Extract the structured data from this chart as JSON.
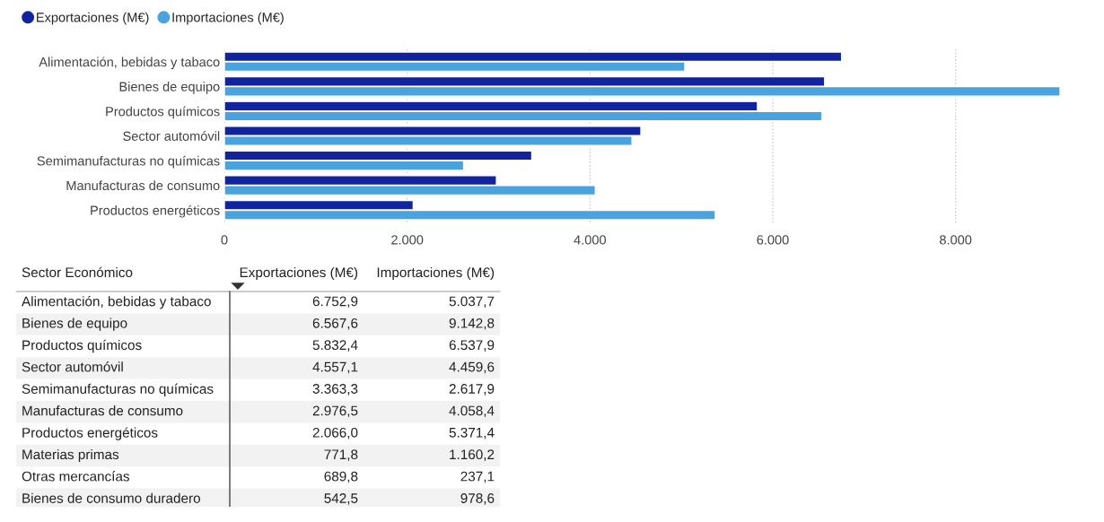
{
  "chart_data": [
    {
      "type": "bar",
      "orientation": "horizontal",
      "categories": [
        "Alimentación, bebidas y tabaco",
        "Bienes de equipo",
        "Productos químicos",
        "Sector automóvil",
        "Semimanufacturas no químicas",
        "Manufacturas de consumo",
        "Productos energéticos"
      ],
      "series": [
        {
          "name": "Exportaciones (M€)",
          "color": "#12239e",
          "values": [
            6752.9,
            6567.6,
            5832.4,
            4557.1,
            3363.3,
            2976.5,
            2066.0
          ]
        },
        {
          "name": "Importaciones (M€)",
          "color": "#4aa3df",
          "values": [
            5037.7,
            9142.8,
            6537.9,
            4459.6,
            2617.9,
            4058.4,
            5371.4
          ]
        }
      ],
      "xlim": [
        0,
        9142.8
      ],
      "xticks": [
        0,
        {
          "value": 2000,
          "label": "2.000"
        },
        {
          "value": 4000,
          "label": "4.000"
        },
        {
          "value": 6000,
          "label": "6.000"
        },
        {
          "value": 8000,
          "label": "8.000"
        }
      ],
      "grid": "x",
      "legend": "top left",
      "marker": "circle"
    },
    {
      "type": "other",
      "title": "Sector Económico",
      "data_labels": true,
      "categories": [
        "Alimentación, bebidas y tabaco",
        "Bienes de equipo",
        "Productos químicos",
        "Sector automóvil",
        "Semimanufacturas no químicas",
        "Manufacturas de consumo",
        "Productos energéticos",
        "Materias primas",
        "Otras mercancías",
        "Bienes de consumo duradero"
      ],
      "series": [
        {
          "name": "Exportaciones (M€)",
          "values": [
            6752.9,
            6567.6,
            5832.4,
            4557.1,
            3363.3,
            2976.5,
            2066.0,
            771.8,
            689.8,
            542.5
          ],
          "value_labels": [
            "6.752,9",
            "6.567,6",
            "5.832,4",
            "4.557,1",
            "3.363,3",
            "2.976,5",
            "2.066,0",
            "771,8",
            "689,8",
            "542,5"
          ]
        },
        {
          "name": "Importaciones (M€)",
          "values": [
            5037.7,
            9142.8,
            6537.9,
            4459.6,
            2617.9,
            4058.4,
            5371.4,
            1160.2,
            237.1,
            978.6
          ],
          "value_labels": [
            "5.037,7",
            "9.142,8",
            "6.537,9",
            "4.459,6",
            "2.617,9",
            "4.058,4",
            "5.371,4",
            "1.160,2",
            "237,1",
            "978,6"
          ]
        }
      ]
    }
  ]
}
